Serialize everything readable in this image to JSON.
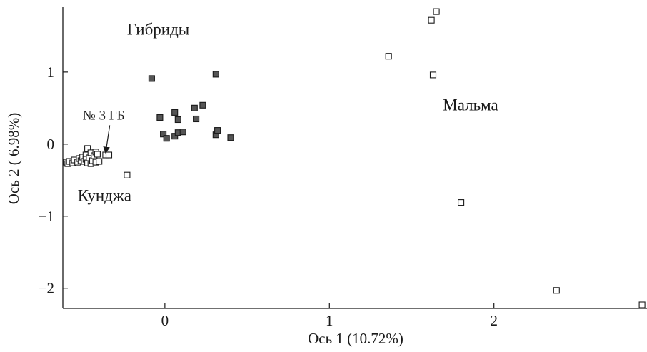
{
  "chart_data": {
    "type": "scatter",
    "title": "",
    "xlabel": "Ось 1 (10.72%)",
    "ylabel": "Ось 2 ( 6.98%)",
    "xlim": [
      -0.62,
      2.93
    ],
    "ylim": [
      -2.28,
      1.9
    ],
    "xticks": [
      0,
      1,
      2
    ],
    "yticks": [
      -2,
      -1,
      0,
      1
    ],
    "xtick_labels": [
      "0",
      "1",
      "2"
    ],
    "ytick_labels": [
      "−2",
      "−1",
      "0",
      "1"
    ],
    "grid": false,
    "series": [
      {
        "name": "Кунджа",
        "marker": "open-square",
        "color": "#ffffff",
        "stroke": "#1a1a1a",
        "points": [
          [
            -0.6,
            -0.25
          ],
          [
            -0.59,
            -0.27
          ],
          [
            -0.58,
            -0.24
          ],
          [
            -0.56,
            -0.26
          ],
          [
            -0.55,
            -0.22
          ],
          [
            -0.53,
            -0.25
          ],
          [
            -0.52,
            -0.2
          ],
          [
            -0.51,
            -0.23
          ],
          [
            -0.5,
            -0.18
          ],
          [
            -0.49,
            -0.24
          ],
          [
            -0.48,
            -0.15
          ],
          [
            -0.48,
            -0.21
          ],
          [
            -0.47,
            -0.26
          ],
          [
            -0.47,
            -0.06
          ],
          [
            -0.46,
            -0.19
          ],
          [
            -0.45,
            -0.27
          ],
          [
            -0.45,
            -0.12
          ],
          [
            -0.44,
            -0.23
          ],
          [
            -0.43,
            -0.16
          ],
          [
            -0.42,
            -0.25
          ],
          [
            -0.42,
            -0.11
          ],
          [
            -0.41,
            -0.14
          ],
          [
            -0.4,
            -0.24
          ],
          [
            -0.36,
            -0.15
          ],
          [
            -0.34,
            -0.15
          ],
          [
            -0.23,
            -0.43
          ]
        ]
      },
      {
        "name": "Гибриды",
        "marker": "filled-square",
        "color": "#555555",
        "stroke": "#1a1a1a",
        "points": [
          [
            -0.08,
            0.91
          ],
          [
            -0.03,
            0.37
          ],
          [
            -0.01,
            0.14
          ],
          [
            0.01,
            0.08
          ],
          [
            0.06,
            0.44
          ],
          [
            0.06,
            0.11
          ],
          [
            0.08,
            0.34
          ],
          [
            0.08,
            0.16
          ],
          [
            0.11,
            0.17
          ],
          [
            0.18,
            0.5
          ],
          [
            0.19,
            0.35
          ],
          [
            0.23,
            0.54
          ],
          [
            0.31,
            0.97
          ],
          [
            0.31,
            0.13
          ],
          [
            0.32,
            0.19
          ],
          [
            0.4,
            0.09
          ]
        ]
      },
      {
        "name": "Мальма",
        "marker": "open-square",
        "color": "#ffffff",
        "stroke": "#1a1a1a",
        "points": [
          [
            1.36,
            1.22
          ],
          [
            1.62,
            1.72
          ],
          [
            1.63,
            0.96
          ],
          [
            1.65,
            1.84
          ],
          [
            1.8,
            -0.81
          ],
          [
            2.38,
            -2.03
          ],
          [
            2.9,
            -2.23
          ]
        ]
      }
    ],
    "annotations": [
      {
        "text": "Гибриды",
        "x": -0.23,
        "y": 1.52
      },
      {
        "text": "Мальма",
        "x": 1.69,
        "y": 0.47
      },
      {
        "text": "Кунджа",
        "x": -0.53,
        "y": -0.79
      },
      {
        "text": "№ 3 ГБ",
        "x": -0.5,
        "y": 0.34,
        "arrow_to": [
          -0.36,
          -0.12
        ]
      }
    ]
  }
}
